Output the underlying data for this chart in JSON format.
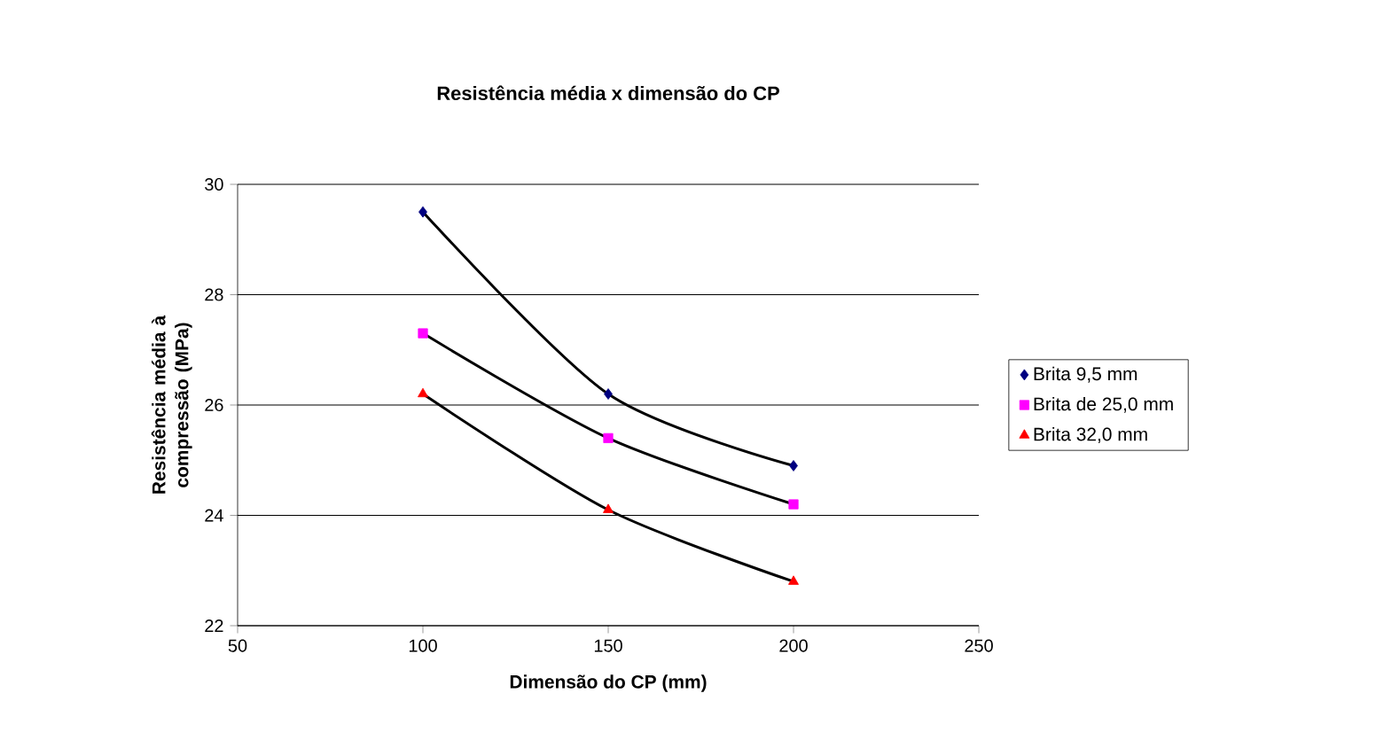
{
  "chart_data": {
    "type": "scatter",
    "title": "Resistência média x dimensão do CP",
    "xlabel": "Dimensão do CP (mm)",
    "ylabel": "Resistência média à compressão (MPa)",
    "xlim": [
      50,
      250
    ],
    "xticks": [
      50,
      100,
      150,
      200,
      250
    ],
    "ylim": [
      22,
      30
    ],
    "yticks": [
      22,
      24,
      26,
      28,
      30
    ],
    "grid": "y",
    "legend": "right",
    "series": [
      {
        "name": "Brita 9,5 mm",
        "marker": "diamond",
        "color": "#000080",
        "x": [
          100,
          150,
          200
        ],
        "values": [
          29.5,
          26.2,
          24.9
        ]
      },
      {
        "name": "Brita de 25,0 mm",
        "marker": "square",
        "color": "#ff00ff",
        "x": [
          100,
          150,
          200
        ],
        "values": [
          27.3,
          25.4,
          24.2
        ]
      },
      {
        "name": "Brita 32,0 mm",
        "marker": "triangle",
        "color": "#ff0000",
        "x": [
          100,
          150,
          200
        ],
        "values": [
          26.2,
          24.1,
          22.8
        ]
      },
      {
        "type": "line",
        "marker": "none",
        "color": "#000000",
        "x": [
          100,
          150,
          200
        ],
        "values": [
          29.5,
          26.2,
          24.9
        ]
      },
      {
        "type": "line",
        "marker": "none",
        "color": "#000000",
        "x": [
          100,
          150,
          200
        ],
        "values": [
          27.3,
          25.4,
          24.2
        ]
      },
      {
        "type": "line",
        "marker": "none",
        "color": "#000000",
        "x": [
          100,
          150,
          200
        ],
        "values": [
          26.2,
          24.1,
          22.8
        ]
      }
    ]
  }
}
